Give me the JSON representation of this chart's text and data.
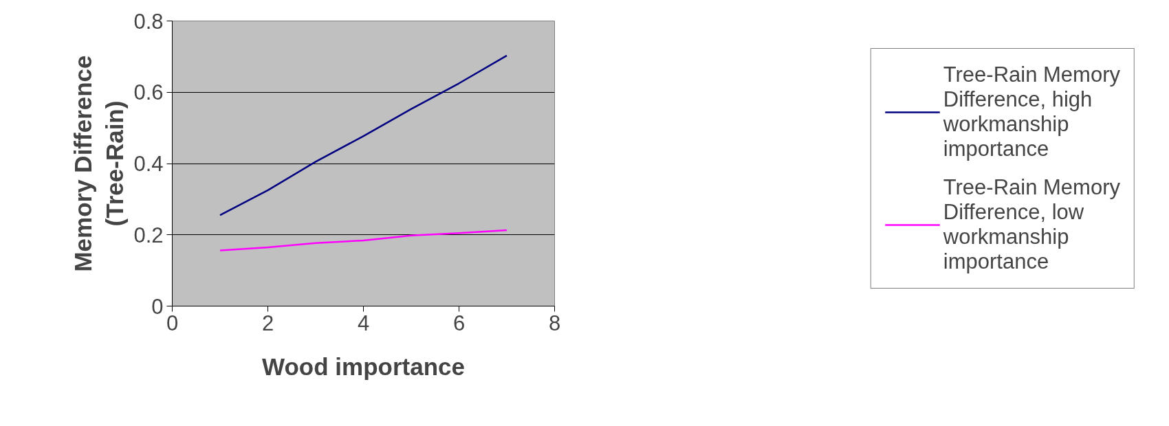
{
  "chart_data": {
    "type": "line",
    "xlabel": "Wood importance",
    "ylabel": "Memory Difference\n(Tree-Rain)",
    "x": [
      1,
      2,
      3,
      4,
      5,
      6,
      7
    ],
    "series": [
      {
        "name": "Tree-Rain Memory Difference, high workmanship importance",
        "color": "#000080",
        "values": [
          0.255,
          0.325,
          0.405,
          0.477,
          0.553,
          0.625,
          0.703
        ]
      },
      {
        "name": "Tree-Rain Memory Difference, low workmanship importance",
        "color": "#ff00ff",
        "values": [
          0.156,
          0.165,
          0.177,
          0.184,
          0.198,
          0.205,
          0.213
        ]
      }
    ],
    "xlim": [
      0,
      8
    ],
    "xticks": [
      0,
      2,
      4,
      6,
      8
    ],
    "ylim": [
      0,
      0.8
    ],
    "yticks": [
      0,
      0.2,
      0.4,
      0.6,
      0.8
    ],
    "grid": "y",
    "legend": "right",
    "marker": "none",
    "line_style": "solid"
  }
}
